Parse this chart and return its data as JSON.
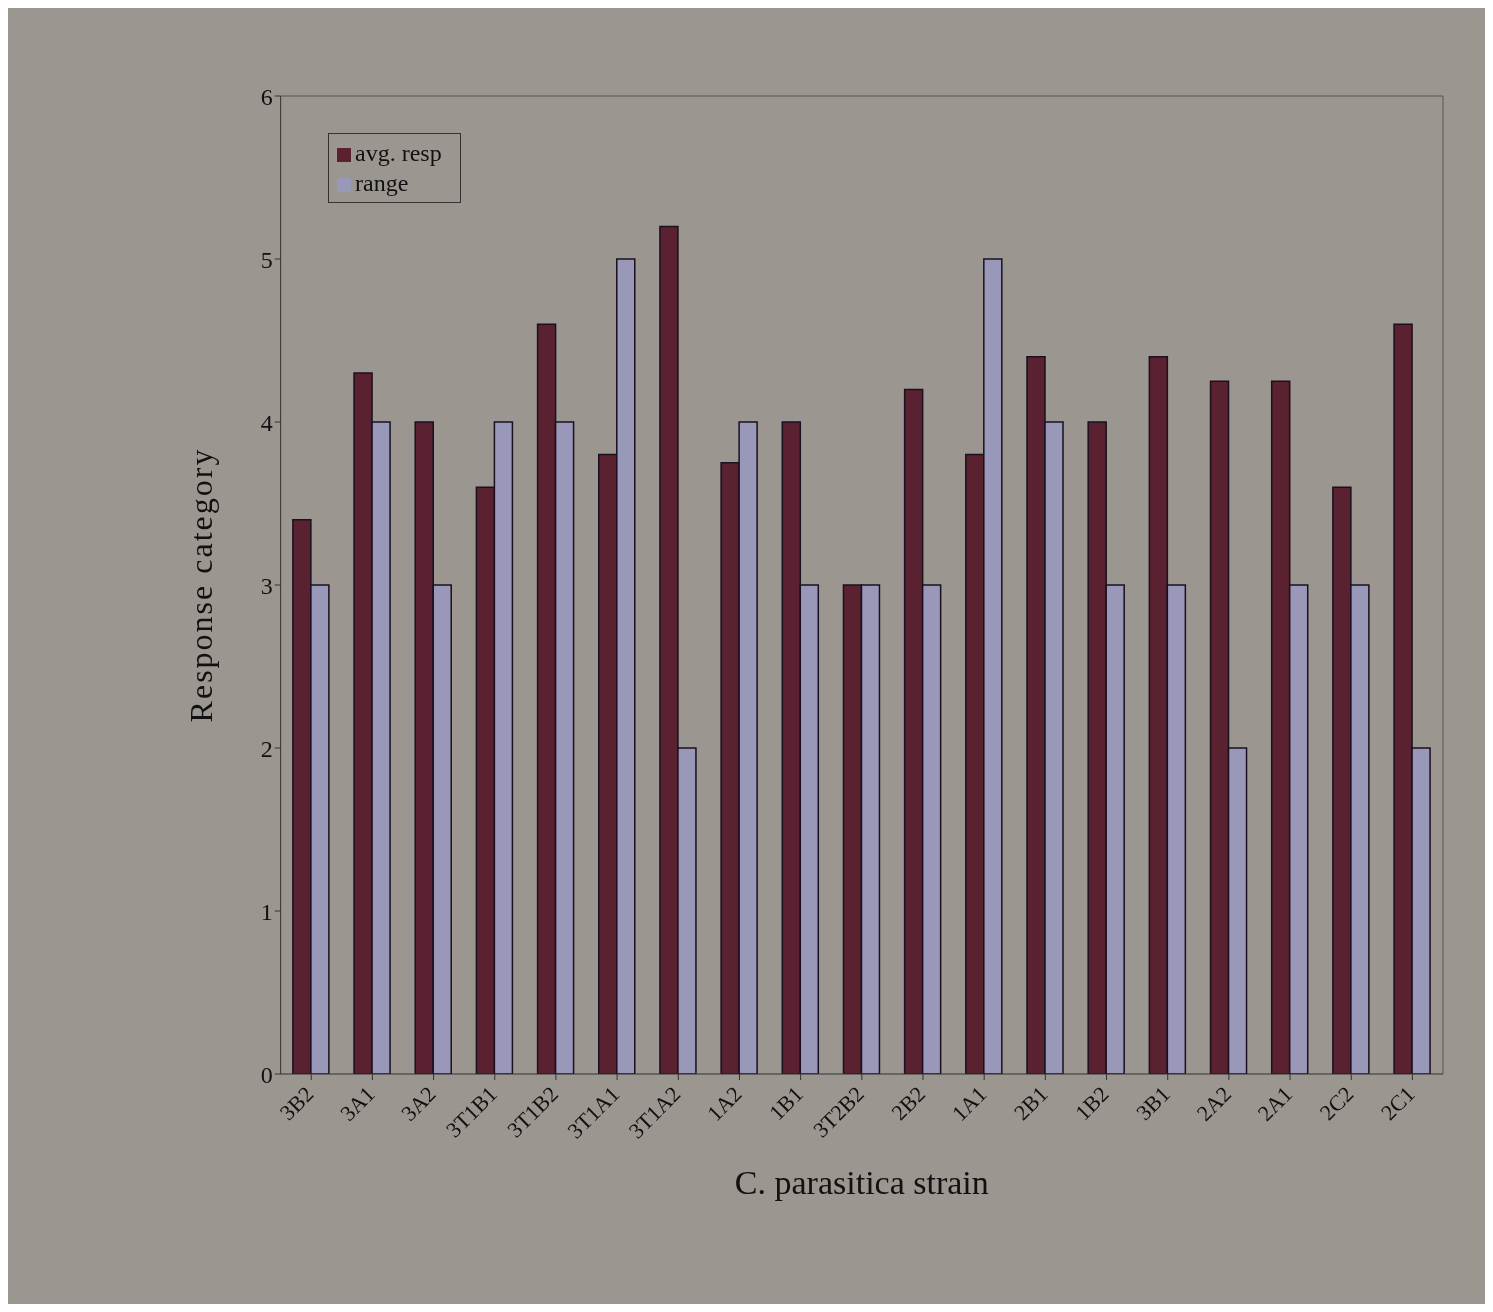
{
  "chart_data": {
    "type": "bar",
    "xlabel": "C. parasitica  strain",
    "ylabel": "Response category",
    "categories": [
      "3B2",
      "3A1",
      "3A2",
      "3T1B1",
      "3T1B2",
      "3T1A1",
      "3T1A2",
      "1A2",
      "1B1",
      "3T2B2",
      "2B2",
      "1A1",
      "2B1",
      "1B2",
      "3B1",
      "2A2",
      "2A1",
      "2C2",
      "2C1"
    ],
    "series": [
      {
        "name": "avg. resp",
        "color": "#5a2230",
        "values": [
          3.4,
          4.3,
          4.0,
          3.6,
          4.6,
          3.8,
          5.2,
          3.75,
          4.0,
          3.0,
          4.2,
          3.8,
          4.4,
          4.0,
          4.4,
          4.25,
          4.25,
          3.6,
          4.6
        ]
      },
      {
        "name": "range",
        "color": "#9a98b8",
        "values": [
          3,
          4,
          3,
          4,
          4,
          5,
          2,
          4,
          3,
          3,
          3,
          5,
          4,
          3,
          3,
          2,
          3,
          3,
          2
        ]
      }
    ],
    "ylim": [
      0,
      6
    ],
    "yticks": [
      0,
      1,
      2,
      3,
      4,
      5,
      6
    ],
    "grid": false,
    "legend": "top left"
  }
}
